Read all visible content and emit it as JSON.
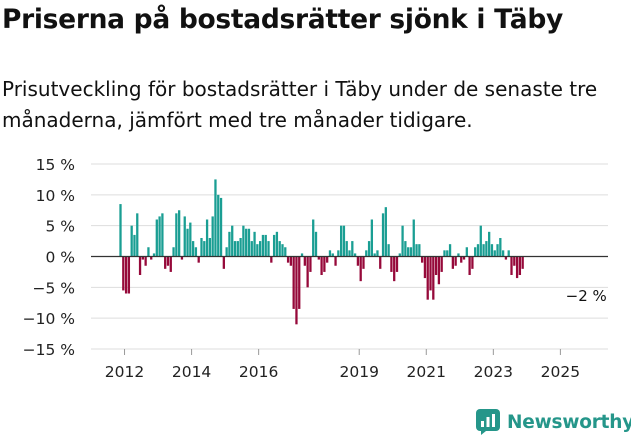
{
  "header": {
    "title": "Priserna på bostadsrätter sjönk i Täby",
    "subtitle": "Prisutveckling för bostadsrätter i Täby under de senaste tre månaderna, jämfört med tre månader tidigare."
  },
  "brand": {
    "name": "Newsworthy",
    "icon": "newsworthy-logo-icon"
  },
  "colors": {
    "positive": "#1a9e93",
    "negative": "#96093a",
    "zero_line": "#333333",
    "grid": "#dddddd",
    "brand": "#25968a"
  },
  "chart_data": {
    "type": "bar",
    "title": "Priserna på bostadsrätter sjönk i Täby",
    "subtitle": "Prisutveckling för bostadsrätter i Täby under de senaste tre månaderna, jämfört med tre månader tidigare.",
    "xlabel": "",
    "ylabel": "",
    "x_unit": "year",
    "x_range": [
      2011.0,
      2026.42
    ],
    "ylim": [
      -15,
      15
    ],
    "y_ticks": [
      15,
      10,
      5,
      0,
      -5,
      -10,
      -15
    ],
    "y_tick_labels": [
      "15 %",
      "10 %",
      "5 %",
      "0 %",
      "−5 %",
      "−10 %",
      "−15 %"
    ],
    "x_ticks": [
      2012,
      2014,
      2016,
      2019,
      2021,
      2023,
      2025
    ],
    "x_tick_labels": [
      "2012",
      "2014",
      "2016",
      "2019",
      "2021",
      "2023",
      "2025"
    ],
    "grid": "horizontal",
    "annotation": {
      "x": 2025.83,
      "y": -2,
      "label": "−2 %"
    },
    "series": [
      {
        "name": "Prisutveckling",
        "start": 2011.88,
        "step": 0.0833,
        "values": [
          8.5,
          -5.5,
          -6,
          -6,
          5,
          3.5,
          7,
          -3,
          -0.5,
          -1.5,
          1.5,
          -0.5,
          0.5,
          6,
          6.5,
          7,
          -2,
          -1.5,
          -2.5,
          1.5,
          7,
          7.5,
          -0.5,
          6.5,
          4.5,
          5.5,
          2.5,
          1.5,
          -1,
          3,
          2.5,
          6,
          3,
          6.5,
          12.5,
          10,
          9.5,
          -2,
          1.5,
          4,
          5,
          2.5,
          2.5,
          3,
          5,
          4.5,
          4.5,
          2.5,
          4,
          2,
          2.5,
          3.5,
          3.5,
          2.5,
          -1,
          3.5,
          4,
          2.5,
          2,
          1.5,
          -1,
          -1.5,
          -8.5,
          -11,
          -8.5,
          0.5,
          -1.5,
          -5,
          -2.5,
          6,
          4,
          -0.5,
          -3,
          -2.5,
          -1,
          1,
          0.5,
          -1.5,
          1,
          5,
          5,
          2.5,
          1,
          2.5,
          0.5,
          -1.5,
          -4,
          -2,
          1,
          2.5,
          6,
          0.5,
          1,
          -2,
          7,
          8,
          2,
          -2.5,
          -4,
          -2.5,
          0.5,
          5,
          2.5,
          1.5,
          1.5,
          6,
          2,
          2,
          -1,
          -3.5,
          -7,
          -5.5,
          -7,
          -3,
          -4.5,
          -2.5,
          1,
          1,
          2,
          -2,
          -1.5,
          0.5,
          -1,
          -0.5,
          1.5,
          -3,
          -2,
          1.5,
          2,
          5,
          2,
          2.5,
          4,
          2,
          1,
          2,
          3,
          1,
          -0.5,
          1,
          -3,
          -1.5,
          -3.5,
          -3,
          -2
        ]
      }
    ]
  }
}
